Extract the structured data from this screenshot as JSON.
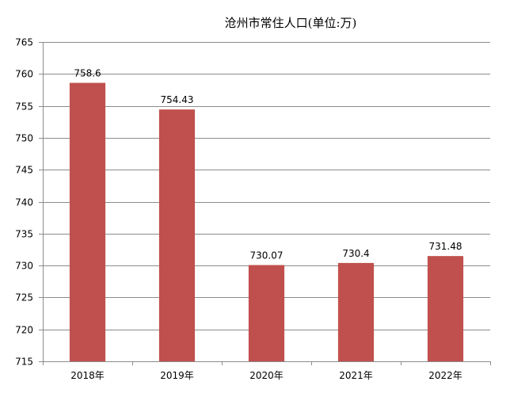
{
  "chart_data": {
    "type": "bar",
    "title": "沧州市常住人口(单位:万)",
    "xlabel": "",
    "ylabel": "",
    "categories": [
      "2018年",
      "2019年",
      "2020年",
      "2021年",
      "2022年"
    ],
    "series": [
      {
        "values": [
          758.6,
          754.43,
          730.07,
          730.4,
          731.48
        ],
        "data_labels": [
          "758.6",
          "754.43",
          "730.07",
          "730.4",
          "731.48"
        ],
        "color": "#C0504D"
      }
    ],
    "ylim": [
      715,
      765
    ],
    "yticks": [
      715,
      720,
      725,
      730,
      735,
      740,
      745,
      750,
      755,
      760,
      765
    ],
    "ytick_labels": [
      "715",
      "720",
      "725",
      "730",
      "735",
      "740",
      "745",
      "750",
      "755",
      "760",
      "765"
    ],
    "grid": true,
    "legend": "none"
  },
  "colors": {
    "bar": "#C0504D",
    "grid": "#8C8C8C",
    "axis": "#8C8C8C",
    "background": "#FFFFFF"
  }
}
